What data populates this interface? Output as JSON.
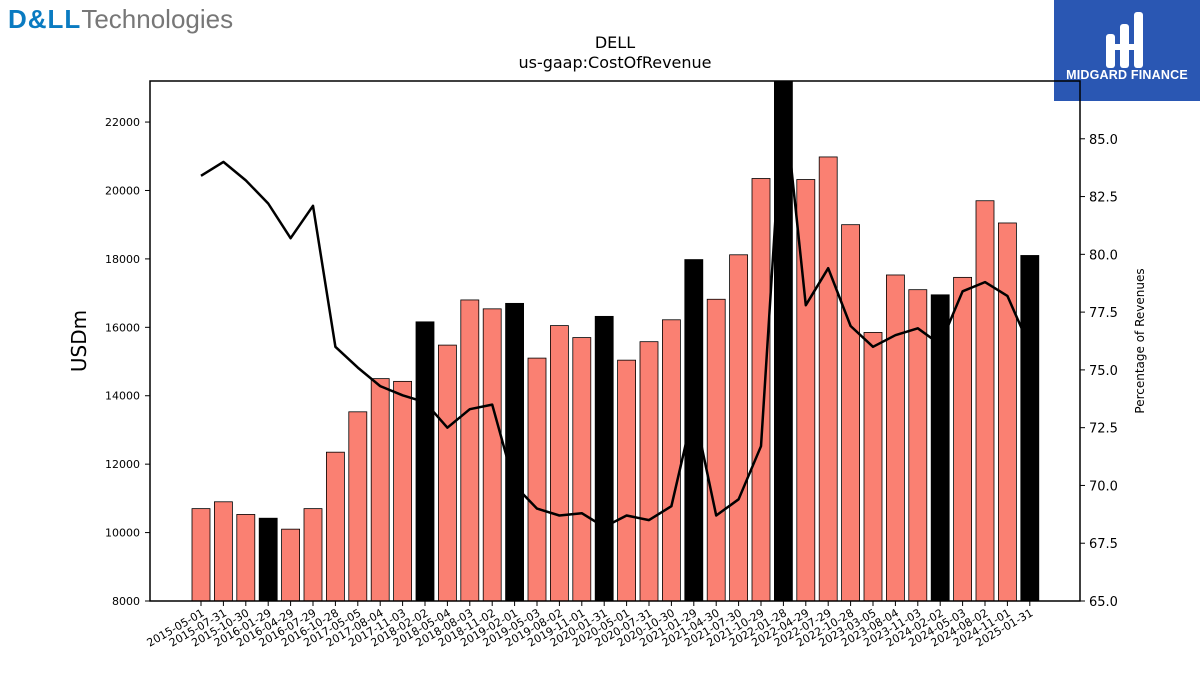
{
  "branding": {
    "company_logo_part1": "D&LL",
    "company_logo_part2": "Technologies",
    "publisher_logo_text": "MIDGARD FINANCE"
  },
  "chart_data": {
    "type": "bar",
    "title": "DELL",
    "subtitle": "us-gaap:CostOfRevenue",
    "ylabel": "USDm",
    "y2label": "Percentage of Revenues",
    "ylim": [
      8000,
      23200
    ],
    "y2lim": [
      65,
      87.5
    ],
    "yticks": [
      8000,
      10000,
      12000,
      14000,
      16000,
      18000,
      20000,
      22000
    ],
    "y2ticks": [
      "65.0",
      "67.5",
      "70.0",
      "72.5",
      "75.0",
      "77.5",
      "80.0",
      "82.5",
      "85.0"
    ],
    "colors": {
      "bar": "#fa8072",
      "bar_highlight": "#000000",
      "line": "#000000"
    },
    "categories": [
      "2015-05-01",
      "2015-07-31",
      "2015-10-30",
      "2016-01-29",
      "2016-04-29",
      "2016-07-29",
      "2016-10-28",
      "2017-05-05",
      "2017-08-04",
      "2017-11-03",
      "2018-02-02",
      "2018-05-04",
      "2018-08-03",
      "2018-11-02",
      "2019-02-01",
      "2019-05-03",
      "2019-08-02",
      "2019-11-01",
      "2020-01-31",
      "2020-05-01",
      "2020-07-31",
      "2020-10-30",
      "2021-01-29",
      "2021-04-30",
      "2021-07-30",
      "2021-10-29",
      "2022-01-28",
      "2022-04-29",
      "2022-07-29",
      "2022-10-28",
      "2023-03-05",
      "2023-08-04",
      "2023-11-03",
      "2024-02-02",
      "2024-05-03",
      "2024-08-02",
      "2024-11-01",
      "2025-01-31"
    ],
    "series": [
      {
        "kind": "bar",
        "values": [
          10700,
          10900,
          10530,
          10420,
          10100,
          10700,
          12350,
          13530,
          14500,
          14420,
          16160,
          15480,
          16800,
          16540,
          16700,
          15100,
          16050,
          15700,
          16320,
          15040,
          15580,
          16220,
          17980,
          16820,
          18120,
          20350,
          23200,
          20320,
          20980,
          19000,
          15850,
          17530,
          17100,
          16950,
          17460,
          19700,
          19050,
          18100
        ],
        "highlight": [
          false,
          false,
          false,
          true,
          false,
          false,
          false,
          false,
          false,
          false,
          true,
          false,
          false,
          false,
          true,
          false,
          false,
          false,
          true,
          false,
          false,
          false,
          true,
          false,
          false,
          false,
          true,
          false,
          false,
          false,
          false,
          false,
          false,
          true,
          false,
          false,
          false,
          true
        ]
      },
      {
        "kind": "line",
        "axis": "right",
        "values": [
          83.4,
          84.0,
          83.2,
          82.2,
          80.7,
          82.1,
          76.0,
          75.1,
          74.3,
          73.9,
          73.6,
          72.5,
          73.3,
          73.5,
          70.0,
          69.0,
          68.7,
          68.8,
          68.2,
          68.7,
          68.5,
          69.1,
          73.3,
          68.7,
          69.4,
          71.7,
          87.0,
          77.8,
          79.4,
          76.9,
          76.0,
          76.5,
          76.8,
          76.1,
          78.4,
          78.8,
          78.2,
          76.0
        ]
      }
    ],
    "grid": false,
    "legend": "none"
  }
}
